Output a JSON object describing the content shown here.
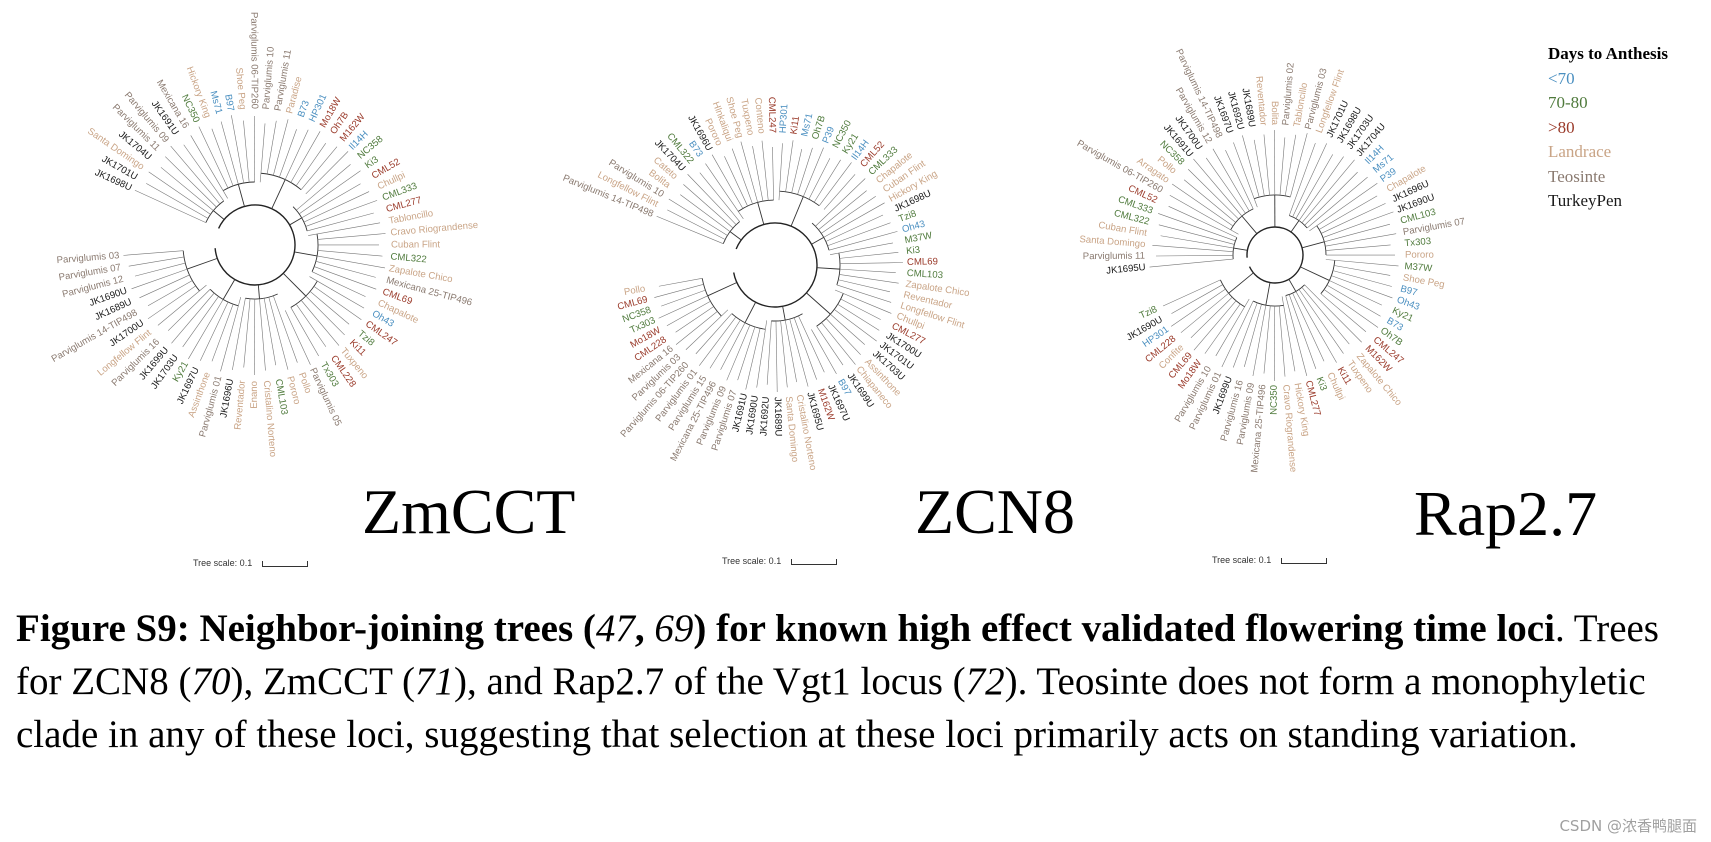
{
  "legend": {
    "title": "Days to Anthesis",
    "items": [
      {
        "label": "<70",
        "color": "#4a8fc0"
      },
      {
        "label": "70-80",
        "color": "#4f7a3c"
      },
      {
        "label": ">80",
        "color": "#9a3a2a"
      },
      {
        "label": "Landrace",
        "color": "#c9a486"
      },
      {
        "label": "Teosinte",
        "color": "#8a7a70"
      },
      {
        "label": "TurkeyPen",
        "color": "#1a1a1a"
      }
    ]
  },
  "trees": [
    {
      "name": "ZmCCT",
      "scale_label": "Tree scale: 0.1",
      "leaves": [
        {
          "t": "JK1698U",
          "c": 5
        },
        {
          "t": "JK1701U",
          "c": 5
        },
        {
          "t": "Santa Domingo",
          "c": 3
        },
        {
          "t": "JK1704U",
          "c": 5
        },
        {
          "t": "Parviglumis 11",
          "c": 4
        },
        {
          "t": "Parviglumis 09",
          "c": 4
        },
        {
          "t": "JK1691U",
          "c": 5
        },
        {
          "t": "Mexicana 16",
          "c": 4
        },
        {
          "t": "NC350",
          "c": 1
        },
        {
          "t": "Hickory King",
          "c": 3
        },
        {
          "t": "Ms71",
          "c": 0
        },
        {
          "t": "B97",
          "c": 0
        },
        {
          "t": "Shoe Peg",
          "c": 3
        },
        {
          "t": "Parviglumis 06-TIP260",
          "c": 4
        },
        {
          "t": "Parviglumis 10",
          "c": 4
        },
        {
          "t": "Parviglumis 11",
          "c": 4
        },
        {
          "t": "Paradise",
          "c": 3
        },
        {
          "t": "B73",
          "c": 0
        },
        {
          "t": "HP301",
          "c": 0
        },
        {
          "t": "Mo18W",
          "c": 2
        },
        {
          "t": "Oh7B",
          "c": 2
        },
        {
          "t": "M162W",
          "c": 2
        },
        {
          "t": "Il14H",
          "c": 0
        },
        {
          "t": "NC358",
          "c": 1
        },
        {
          "t": "Ki3",
          "c": 1
        },
        {
          "t": "CML52",
          "c": 2
        },
        {
          "t": "Chullpi",
          "c": 3
        },
        {
          "t": "CML333",
          "c": 1
        },
        {
          "t": "CML277",
          "c": 2
        },
        {
          "t": "Tabloncillo",
          "c": 3
        },
        {
          "t": "Cravo Riograndense",
          "c": 3
        },
        {
          "t": "Cuban Flint",
          "c": 3
        },
        {
          "t": "CML322",
          "c": 1
        },
        {
          "t": "Zapalote Chico",
          "c": 3
        },
        {
          "t": "Mexicana 25-TIP496",
          "c": 4
        },
        {
          "t": "CML69",
          "c": 2
        },
        {
          "t": "Chapalote",
          "c": 3
        },
        {
          "t": "Oh43",
          "c": 0
        },
        {
          "t": "CML247",
          "c": 2
        },
        {
          "t": "Tzi8",
          "c": 1
        },
        {
          "t": "Ki11",
          "c": 2
        },
        {
          "t": "Tuxpeno",
          "c": 3
        },
        {
          "t": "CML228",
          "c": 2
        },
        {
          "t": "Tx303",
          "c": 1
        },
        {
          "t": "Parviglumis 05",
          "c": 4
        },
        {
          "t": "Pollo",
          "c": 3
        },
        {
          "t": "Pororo",
          "c": 3
        },
        {
          "t": "CML103",
          "c": 1
        },
        {
          "t": "Cristalino Norteno",
          "c": 3
        },
        {
          "t": "Enano",
          "c": 3
        },
        {
          "t": "Reventador",
          "c": 3
        },
        {
          "t": "JK1696U",
          "c": 5
        },
        {
          "t": "Parviglumis 01",
          "c": 4
        },
        {
          "t": "Assinthone",
          "c": 3
        },
        {
          "t": "JK1697U",
          "c": 5
        },
        {
          "t": "Ky21",
          "c": 1
        },
        {
          "t": "JK1703U",
          "c": 5
        },
        {
          "t": "JK1699U",
          "c": 5
        },
        {
          "t": "Parviglumis 16",
          "c": 4
        },
        {
          "t": "Longfellow Flint",
          "c": 3
        },
        {
          "t": "JK1700U",
          "c": 5
        },
        {
          "t": "Parviglumis 14-TIP498",
          "c": 4
        },
        {
          "t": "JK1689U",
          "c": 5
        },
        {
          "t": "JK1690U",
          "c": 5
        },
        {
          "t": "Parviglumis 12",
          "c": 4
        },
        {
          "t": "Parviglumis 07",
          "c": 4
        },
        {
          "t": "Parviglumis 03",
          "c": 4
        }
      ]
    },
    {
      "name": "ZCN8",
      "scale_label": "Tree scale: 0.1",
      "leaves": [
        {
          "t": "Parviglumis 14-TIP498",
          "c": 4
        },
        {
          "t": "Longfellow Flint",
          "c": 3
        },
        {
          "t": "Parviglumis 10",
          "c": 4
        },
        {
          "t": "Bolita",
          "c": 3
        },
        {
          "t": "Cateto",
          "c": 3
        },
        {
          "t": "JK1704U",
          "c": 5
        },
        {
          "t": "CML322",
          "c": 1
        },
        {
          "t": "B73",
          "c": 0
        },
        {
          "t": "JK1696U",
          "c": 5
        },
        {
          "t": "Pororo",
          "c": 3
        },
        {
          "t": "Hlnkaliqui",
          "c": 3
        },
        {
          "t": "Shoe Peg",
          "c": 3
        },
        {
          "t": "Tuxpeno",
          "c": 3
        },
        {
          "t": "Conteno",
          "c": 3
        },
        {
          "t": "CML247",
          "c": 2
        },
        {
          "t": "HP301",
          "c": 0
        },
        {
          "t": "Ki11",
          "c": 2
        },
        {
          "t": "Ms71",
          "c": 0
        },
        {
          "t": "Oh7B",
          "c": 1
        },
        {
          "t": "P39",
          "c": 0
        },
        {
          "t": "NC350",
          "c": 1
        },
        {
          "t": "Ky21",
          "c": 1
        },
        {
          "t": "Il14H",
          "c": 0
        },
        {
          "t": "CML52",
          "c": 2
        },
        {
          "t": "CML333",
          "c": 1
        },
        {
          "t": "Chapalote",
          "c": 3
        },
        {
          "t": "Cuban Flint",
          "c": 3
        },
        {
          "t": "Hickory King",
          "c": 3
        },
        {
          "t": "JK1698U",
          "c": 5
        },
        {
          "t": "Tzi8",
          "c": 1
        },
        {
          "t": "Oh43",
          "c": 0
        },
        {
          "t": "M37W",
          "c": 1
        },
        {
          "t": "Ki3",
          "c": 1
        },
        {
          "t": "CML69",
          "c": 2
        },
        {
          "t": "CML103",
          "c": 1
        },
        {
          "t": "Zapalote Chico",
          "c": 3
        },
        {
          "t": "Reventador",
          "c": 3
        },
        {
          "t": "Longfellow Flint",
          "c": 3
        },
        {
          "t": "Chullpi",
          "c": 3
        },
        {
          "t": "CML277",
          "c": 2
        },
        {
          "t": "JK1700U",
          "c": 5
        },
        {
          "t": "JK1701U",
          "c": 5
        },
        {
          "t": "JK1703U",
          "c": 5
        },
        {
          "t": "Assinthone",
          "c": 3
        },
        {
          "t": "Chiapaneco",
          "c": 3
        },
        {
          "t": "JK1699U",
          "c": 5
        },
        {
          "t": "B97",
          "c": 0
        },
        {
          "t": "JK1697U",
          "c": 5
        },
        {
          "t": "M162W",
          "c": 2
        },
        {
          "t": "JK1695U",
          "c": 5
        },
        {
          "t": "Cristalino Norteno",
          "c": 3
        },
        {
          "t": "Santa Domingo",
          "c": 3
        },
        {
          "t": "JK1689U",
          "c": 5
        },
        {
          "t": "JK1692U",
          "c": 5
        },
        {
          "t": "JK1690U",
          "c": 5
        },
        {
          "t": "JK1691U",
          "c": 5
        },
        {
          "t": "Parviglumis 07",
          "c": 4
        },
        {
          "t": "Parviglumis 09",
          "c": 4
        },
        {
          "t": "Mexicana 25-TIP496",
          "c": 4
        },
        {
          "t": "Parviglumis 15",
          "c": 4
        },
        {
          "t": "Parviglumis 01",
          "c": 4
        },
        {
          "t": "Parviglumis 06-TIP260",
          "c": 4
        },
        {
          "t": "Parviglumis 03",
          "c": 4
        },
        {
          "t": "Mexicana 16",
          "c": 4
        },
        {
          "t": "CML228",
          "c": 2
        },
        {
          "t": "Mo18W",
          "c": 2
        },
        {
          "t": "Tx303",
          "c": 1
        },
        {
          "t": "NC358",
          "c": 1
        },
        {
          "t": "CML69",
          "c": 2
        },
        {
          "t": "Pollo",
          "c": 3
        }
      ]
    },
    {
      "name": "Rap2.7",
      "scale_label": "Tree scale: 0.1",
      "leaves": [
        {
          "t": "JK1695U",
          "c": 5
        },
        {
          "t": "Parviglumis 11",
          "c": 4
        },
        {
          "t": "Santa Domingo",
          "c": 3
        },
        {
          "t": "Cuban Flint",
          "c": 3
        },
        {
          "t": "CML322",
          "c": 1
        },
        {
          "t": "CML333",
          "c": 1
        },
        {
          "t": "CML52",
          "c": 2
        },
        {
          "t": "Parviglumis 06-TIP260",
          "c": 4
        },
        {
          "t": "Arragato",
          "c": 3
        },
        {
          "t": "Pollo",
          "c": 3
        },
        {
          "t": "NC358",
          "c": 1
        },
        {
          "t": "JK1691U",
          "c": 5
        },
        {
          "t": "JK1700U",
          "c": 5
        },
        {
          "t": "Parviglumis 12",
          "c": 4
        },
        {
          "t": "Parviglumis 14-TIP498",
          "c": 4
        },
        {
          "t": "JK1697U",
          "c": 5
        },
        {
          "t": "JK1692U",
          "c": 5
        },
        {
          "t": "JK1689U",
          "c": 5
        },
        {
          "t": "Reventador",
          "c": 3
        },
        {
          "t": "Bolita",
          "c": 3
        },
        {
          "t": "Parviglumis 02",
          "c": 4
        },
        {
          "t": "Tabloncillo",
          "c": 3
        },
        {
          "t": "Parviglumis 03",
          "c": 4
        },
        {
          "t": "Longfellow Flint",
          "c": 3
        },
        {
          "t": "JK1701U",
          "c": 5
        },
        {
          "t": "JK1698U",
          "c": 5
        },
        {
          "t": "JK1703U",
          "c": 5
        },
        {
          "t": "JK1704U",
          "c": 5
        },
        {
          "t": "Il14H",
          "c": 0
        },
        {
          "t": "Ms71",
          "c": 0
        },
        {
          "t": "P39",
          "c": 0
        },
        {
          "t": "Chapalote",
          "c": 3
        },
        {
          "t": "JK1696U",
          "c": 5
        },
        {
          "t": "JK1690U",
          "c": 5
        },
        {
          "t": "CML103",
          "c": 1
        },
        {
          "t": "Parviglumis 07",
          "c": 4
        },
        {
          "t": "Tx303",
          "c": 1
        },
        {
          "t": "Pororo",
          "c": 3
        },
        {
          "t": "M37W",
          "c": 1
        },
        {
          "t": "Shoe Peg",
          "c": 3
        },
        {
          "t": "B97",
          "c": 0
        },
        {
          "t": "Oh43",
          "c": 0
        },
        {
          "t": "Ky21",
          "c": 1
        },
        {
          "t": "B73",
          "c": 0
        },
        {
          "t": "Oh7B",
          "c": 1
        },
        {
          "t": "CML247",
          "c": 2
        },
        {
          "t": "M162W",
          "c": 2
        },
        {
          "t": "Zapalote Chico",
          "c": 3
        },
        {
          "t": "Tuxpeno",
          "c": 3
        },
        {
          "t": "Ki11",
          "c": 2
        },
        {
          "t": "Chullpi",
          "c": 3
        },
        {
          "t": "Ki3",
          "c": 1
        },
        {
          "t": "CML277",
          "c": 2
        },
        {
          "t": "Hickory King",
          "c": 3
        },
        {
          "t": "Cravo Riograndense",
          "c": 3
        },
        {
          "t": "NC350",
          "c": 1
        },
        {
          "t": "Mexicana 25-TIP496",
          "c": 4
        },
        {
          "t": "Parviglumis 09",
          "c": 4
        },
        {
          "t": "Parviglumis 16",
          "c": 4
        },
        {
          "t": "JK1699U",
          "c": 5
        },
        {
          "t": "Parviglumis 01",
          "c": 4
        },
        {
          "t": "Parviglumis 10",
          "c": 4
        },
        {
          "t": "Mo18W",
          "c": 2
        },
        {
          "t": "CML69",
          "c": 2
        },
        {
          "t": "Confite",
          "c": 3
        },
        {
          "t": "CML228",
          "c": 2
        },
        {
          "t": "HP301",
          "c": 0
        },
        {
          "t": "JK1690U",
          "c": 5
        },
        {
          "t": "Tzi8",
          "c": 1
        }
      ]
    }
  ],
  "caption": {
    "part1_bold": "Figure S9: Neighbor-joining trees",
    "paren_open": " (",
    "ref_a": "47",
    "comma": ", ",
    "ref_b": "69",
    "paren_close": ") ",
    "part2_bold": "for known high effect validated flowering time loci",
    "text1": ". Trees for ZCN8 (",
    "ref_c": "70",
    "text2": "), ZmCCT (",
    "ref_d": "71",
    "text3": "), and Rap2.7 of the Vgt1 locus (",
    "ref_e": "72",
    "text4": ").",
    "text5": " Teosinte does not form a monophyletic clade in any of these loci, suggesting that selection at these loci primarily acts on standing variation."
  },
  "watermark": "CSDN @浓香鸭腿面"
}
